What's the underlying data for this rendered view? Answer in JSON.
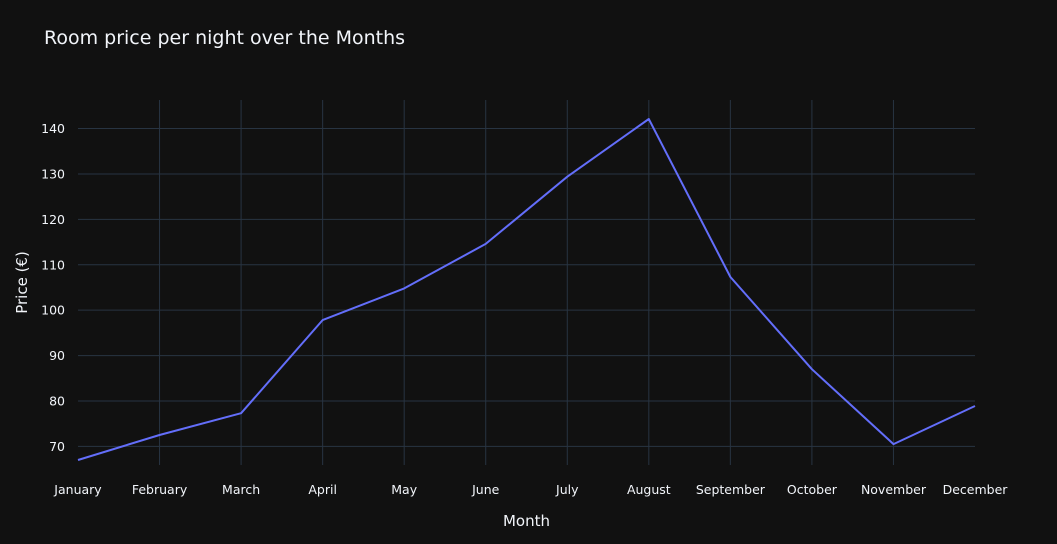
{
  "chart_data": {
    "type": "line",
    "title": "Room price per night over the Months",
    "xlabel": "Month",
    "ylabel": "Price (€)",
    "categories": [
      "January",
      "February",
      "March",
      "April",
      "May",
      "June",
      "July",
      "August",
      "September",
      "October",
      "November",
      "December"
    ],
    "series": [
      {
        "values": [
          67,
          72.5,
          77.3,
          97.8,
          104.8,
          114.6,
          129.4,
          142.1,
          107.3,
          87,
          70.5,
          78.9
        ]
      }
    ],
    "y_ticks": [
      70,
      80,
      90,
      100,
      110,
      120,
      130,
      140
    ],
    "ylim": [
      67,
      142.1
    ],
    "grid": true,
    "legend": "none",
    "colors": {
      "background": "#111111",
      "line": "#636efa",
      "grid": "#283442",
      "text": "#f2f5fa"
    }
  }
}
